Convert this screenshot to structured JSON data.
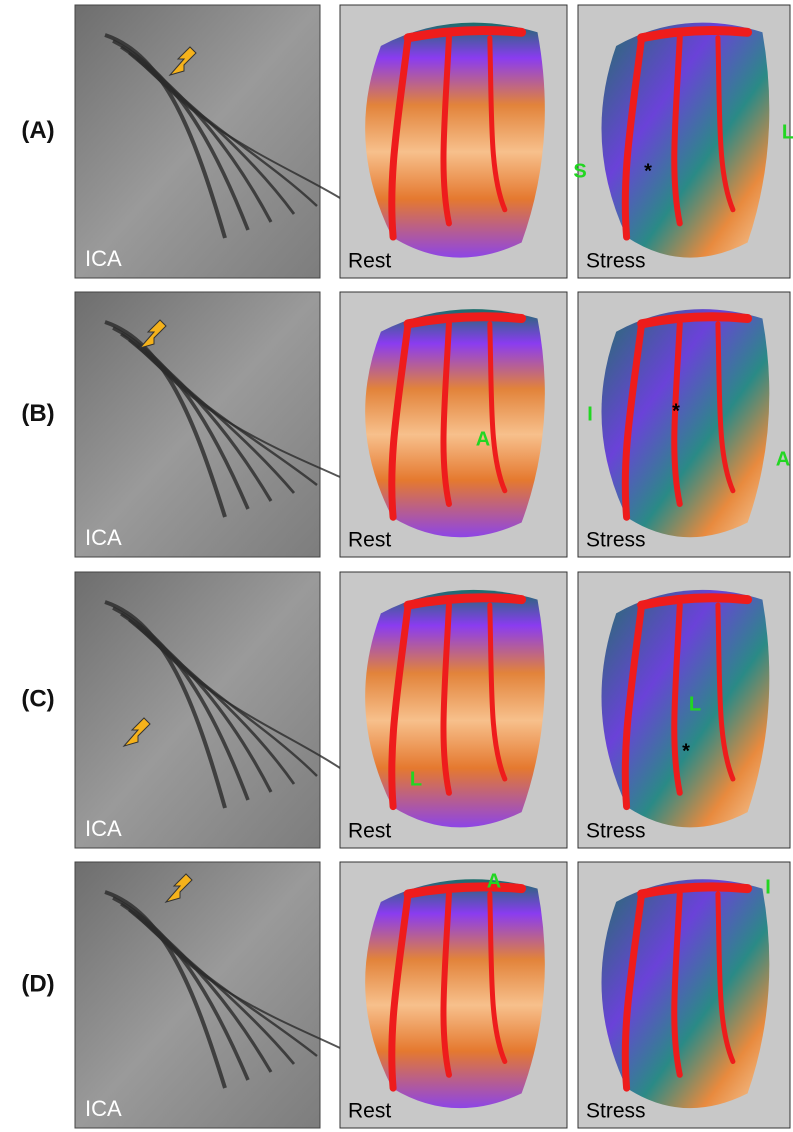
{
  "rows": [
    {
      "label": "(A)",
      "angiogram": {
        "label": "ICA"
      },
      "rest": {
        "label": "Rest",
        "markers": []
      },
      "stress": {
        "label": "Stress",
        "markers": [
          "S",
          "*",
          "L"
        ]
      }
    },
    {
      "label": "(B)",
      "angiogram": {
        "label": "ICA"
      },
      "rest": {
        "label": "Rest",
        "markers": [
          "A"
        ]
      },
      "stress": {
        "label": "Stress",
        "markers": [
          "I",
          "*",
          "A"
        ]
      }
    },
    {
      "label": "(C)",
      "angiogram": {
        "label": "ICA"
      },
      "rest": {
        "label": "Rest",
        "markers": [
          "L"
        ]
      },
      "stress": {
        "label": "Stress",
        "markers": [
          "L",
          "*"
        ]
      }
    },
    {
      "label": "(D)",
      "angiogram": {
        "label": "ICA"
      },
      "rest": {
        "label": "Rest",
        "markers": [
          "A"
        ]
      },
      "stress": {
        "label": "Stress",
        "markers": [
          "I"
        ]
      }
    }
  ]
}
